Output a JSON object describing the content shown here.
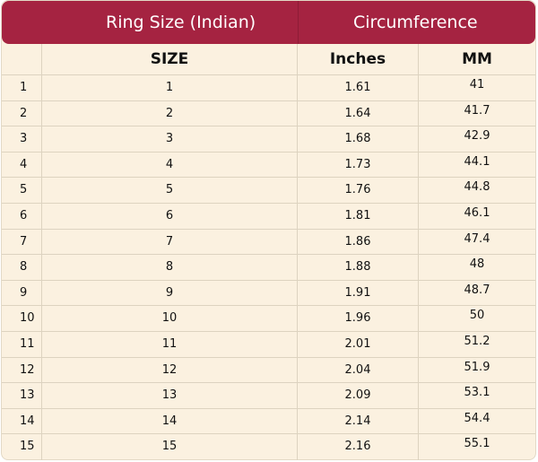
{
  "header": {
    "ring_size": "Ring Size (Indian)",
    "circumference": "Circumference"
  },
  "columns": {
    "size": "SIZE",
    "inches": "Inches",
    "mm": "MM"
  },
  "colors": {
    "header_bg": "#a52341",
    "table_bg": "#fbf1e0"
  },
  "rows": [
    {
      "idx": "1",
      "size": "1",
      "inches": "1.61",
      "mm": "41"
    },
    {
      "idx": "2",
      "size": "2",
      "inches": "1.64",
      "mm": "41.7"
    },
    {
      "idx": "3",
      "size": "3",
      "inches": "1.68",
      "mm": "42.9"
    },
    {
      "idx": "4",
      "size": "4",
      "inches": "1.73",
      "mm": "44.1"
    },
    {
      "idx": "5",
      "size": "5",
      "inches": "1.76",
      "mm": "44.8"
    },
    {
      "idx": "6",
      "size": "6",
      "inches": "1.81",
      "mm": "46.1"
    },
    {
      "idx": "7",
      "size": "7",
      "inches": "1.86",
      "mm": "47.4"
    },
    {
      "idx": "8",
      "size": "8",
      "inches": "1.88",
      "mm": "48"
    },
    {
      "idx": "9",
      "size": "9",
      "inches": "1.91",
      "mm": "48.7"
    },
    {
      "idx": "10",
      "size": "10",
      "inches": "1.96",
      "mm": "50"
    },
    {
      "idx": "11",
      "size": "11",
      "inches": "2.01",
      "mm": "51.2"
    },
    {
      "idx": "12",
      "size": "12",
      "inches": "2.04",
      "mm": "51.9"
    },
    {
      "idx": "13",
      "size": "13",
      "inches": "2.09",
      "mm": "53.1"
    },
    {
      "idx": "14",
      "size": "14",
      "inches": "2.14",
      "mm": "54.4"
    },
    {
      "idx": "15",
      "size": "15",
      "inches": "2.16",
      "mm": "55.1"
    }
  ]
}
